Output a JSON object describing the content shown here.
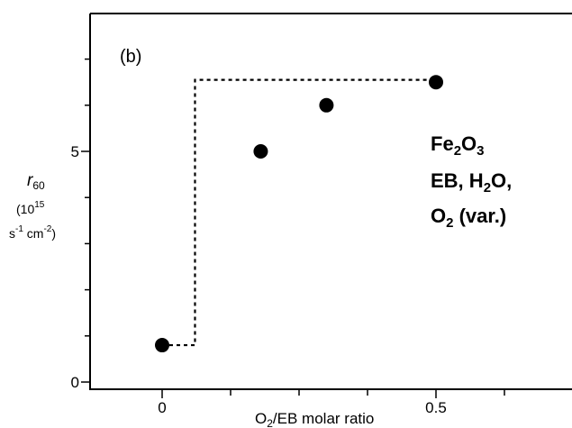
{
  "chart_data": {
    "type": "scatter",
    "panel_label": "(b)",
    "x_axis": {
      "label_parts": [
        "O",
        "2",
        "/EB molar ratio"
      ],
      "range": [
        -0.14,
        0.72
      ],
      "tick_labels": [
        {
          "value": 0,
          "label": "0"
        },
        {
          "value": 0.5,
          "label": "0.5"
        }
      ],
      "minor_ticks": [
        0.125,
        0.25,
        0.375,
        0.625
      ]
    },
    "y_axis": {
      "label_symbol": "r",
      "label_subscript": "60",
      "unit_line1": "(10",
      "unit_line1_exp": "15",
      "unit_line2_a": "s",
      "unit_line2_a_exp": "-1",
      "unit_line2_b": " cm",
      "unit_line2_b_exp": "-2",
      "unit_line2_close": ")",
      "range": [
        0,
        10
      ],
      "tick_labels": [
        {
          "value": 0,
          "label": "0"
        },
        {
          "value": 5,
          "label": "5"
        }
      ],
      "minor_ticks": [
        1,
        2,
        3,
        4,
        6,
        7,
        8,
        9
      ]
    },
    "points": [
      {
        "x": 0.0,
        "y": 0.8
      },
      {
        "x": 0.18,
        "y": 5.0
      },
      {
        "x": 0.3,
        "y": 6.0
      },
      {
        "x": 0.5,
        "y": 6.5
      }
    ],
    "dotted_step": [
      {
        "x": 0.0,
        "y": 0.8
      },
      {
        "x": 0.06,
        "y": 0.8
      },
      {
        "x": 0.06,
        "y": 6.55
      },
      {
        "x": 0.5,
        "y": 6.55
      }
    ],
    "annotation": {
      "line1_a": "Fe",
      "line1_sub1": "2",
      "line1_b": "O",
      "line1_sub2": "3",
      "line2_a": "EB, H",
      "line2_sub": "2",
      "line2_b": "O,",
      "line3_a": "O",
      "line3_sub": "2",
      "line3_b": " (var.)"
    }
  }
}
